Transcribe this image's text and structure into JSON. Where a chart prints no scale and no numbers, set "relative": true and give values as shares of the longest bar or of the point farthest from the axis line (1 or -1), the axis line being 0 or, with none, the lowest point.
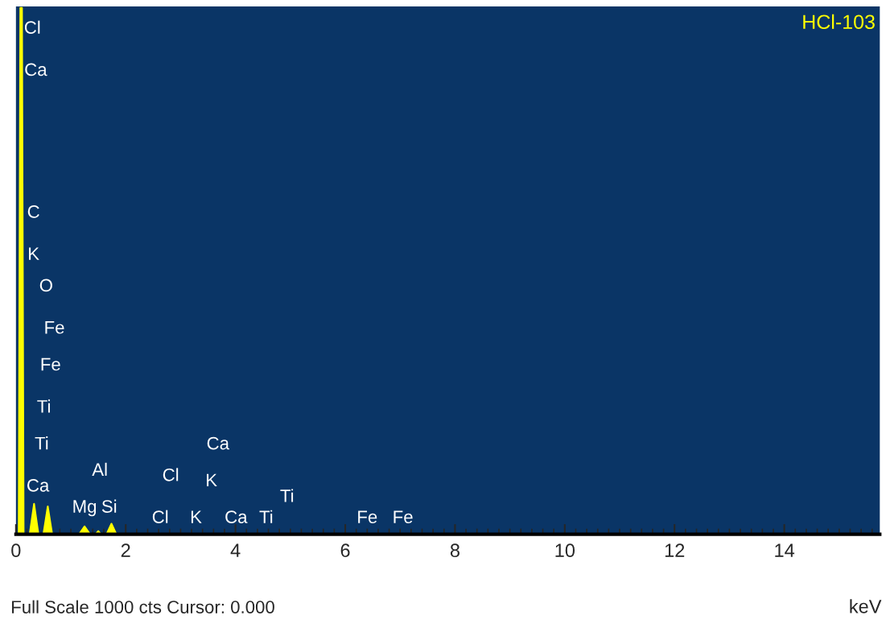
{
  "chart_data": {
    "type": "area",
    "title": "HCl-103",
    "xlabel": "keV",
    "relative": true,
    "x": [
      0,
      0.05,
      0.08,
      0.11,
      0.14,
      0.25,
      0.33,
      0.41,
      0.5,
      0.58,
      0.66,
      1.15,
      1.25,
      1.35,
      1.45,
      1.5,
      1.55,
      1.65,
      1.74,
      1.83,
      2.5,
      15.74
    ],
    "series": [
      {
        "color": "#ffff00",
        "values": [
          0,
          0,
          1,
          1,
          0,
          0,
          0.058,
          0,
          0,
          0.053,
          0,
          0,
          0.015,
          0,
          0,
          0.006,
          0,
          0,
          0.02,
          0,
          0,
          0
        ]
      }
    ],
    "xlim": [
      0,
      15.74
    ],
    "xticks": [
      0,
      2,
      4,
      6,
      8,
      10,
      12,
      14
    ],
    "grid": false,
    "annotations": [
      "Full Scale 1000 cts Cursor: 0.000",
      "Cl",
      "Ca",
      "C",
      "K",
      "O",
      "Fe",
      "Fe",
      "Ti",
      "Ti",
      "Ca",
      "Al",
      "Mg",
      "Si",
      "Cl",
      "Cl",
      "K",
      "Ca",
      "K",
      "Ca",
      "Ti",
      "Ti",
      "Fe",
      "Fe"
    ]
  }
}
